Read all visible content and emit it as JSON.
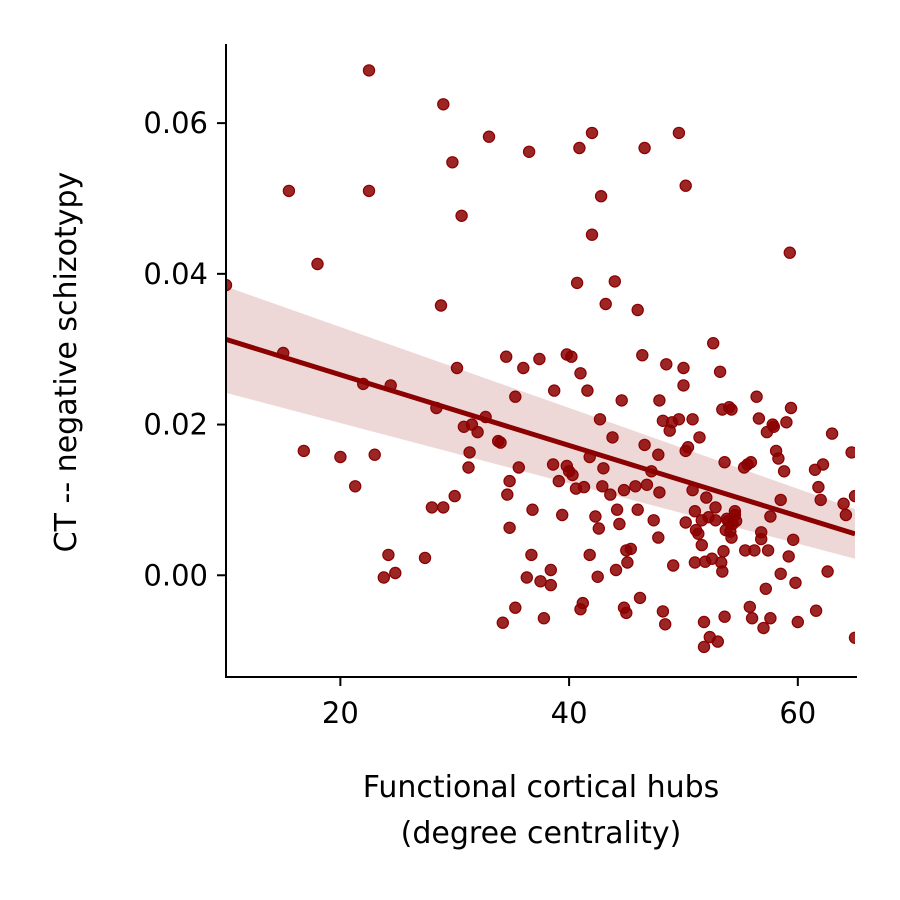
{
  "chart_data": {
    "type": "scatter",
    "title": "",
    "xlabel_lines": [
      "Functional cortical hubs",
      "(degree centrality)"
    ],
    "ylabel": "CT -- negative schizotypy",
    "xlim": [
      10,
      65
    ],
    "ylim": [
      -0.0135,
      0.0705
    ],
    "xticks": [
      20,
      40,
      60
    ],
    "xtick_labels": [
      "20",
      "40",
      "60"
    ],
    "yticks": [
      0.0,
      0.02,
      0.04,
      0.06
    ],
    "ytick_labels": [
      "0.00",
      "0.02",
      "0.04",
      "0.06"
    ],
    "grid": false,
    "point_color": "#8b0000",
    "line_color": "#8b0000",
    "band_color": "#e7c9c9",
    "regression": {
      "x": [
        10,
        65
      ],
      "y": [
        0.0313,
        0.0055
      ],
      "ci_lower": [
        0.0242,
        0.0022
      ],
      "ci_upper": [
        0.0383,
        0.0088
      ]
    },
    "points": [
      [
        10.0,
        0.0385
      ],
      [
        15.0,
        0.0295
      ],
      [
        15.5,
        0.051
      ],
      [
        16.8,
        0.0165
      ],
      [
        18.0,
        0.0413
      ],
      [
        20.0,
        0.0157
      ],
      [
        21.3,
        0.0118
      ],
      [
        22.0,
        0.0254
      ],
      [
        22.5,
        0.067
      ],
      [
        22.5,
        0.051
      ],
      [
        23.0,
        0.016
      ],
      [
        23.8,
        -0.0003
      ],
      [
        24.2,
        0.0027
      ],
      [
        24.4,
        0.0252
      ],
      [
        24.8,
        0.0003
      ],
      [
        27.4,
        0.0023
      ],
      [
        28.0,
        0.009
      ],
      [
        28.4,
        0.0222
      ],
      [
        28.8,
        0.0358
      ],
      [
        29.0,
        0.0625
      ],
      [
        29.0,
        0.009
      ],
      [
        29.8,
        0.0548
      ],
      [
        30.0,
        0.0105
      ],
      [
        30.2,
        0.0275
      ],
      [
        30.6,
        0.0477
      ],
      [
        30.8,
        0.0197
      ],
      [
        31.2,
        0.0143
      ],
      [
        31.3,
        0.0163
      ],
      [
        31.5,
        0.02
      ],
      [
        32.0,
        0.019
      ],
      [
        32.7,
        0.021
      ],
      [
        33.0,
        0.0582
      ],
      [
        33.8,
        0.0178
      ],
      [
        34.0,
        0.0176
      ],
      [
        34.2,
        -0.0063
      ],
      [
        34.5,
        0.029
      ],
      [
        34.6,
        0.0107
      ],
      [
        34.8,
        0.0125
      ],
      [
        34.8,
        0.0063
      ],
      [
        35.3,
        0.0237
      ],
      [
        35.3,
        -0.0043
      ],
      [
        35.6,
        0.0143
      ],
      [
        36.0,
        0.0275
      ],
      [
        36.3,
        -0.0003
      ],
      [
        36.5,
        0.0562
      ],
      [
        36.7,
        0.0027
      ],
      [
        36.8,
        0.0087
      ],
      [
        37.4,
        0.0287
      ],
      [
        37.5,
        -0.0008
      ],
      [
        37.8,
        -0.0057
      ],
      [
        38.4,
        -0.0013
      ],
      [
        38.4,
        0.0007
      ],
      [
        38.6,
        0.0147
      ],
      [
        38.7,
        0.0245
      ],
      [
        39.1,
        0.0125
      ],
      [
        39.4,
        0.008
      ],
      [
        39.8,
        0.0293
      ],
      [
        39.8,
        0.0145
      ],
      [
        40.0,
        0.0138
      ],
      [
        40.2,
        0.029
      ],
      [
        40.3,
        0.0133
      ],
      [
        40.6,
        0.0115
      ],
      [
        40.7,
        0.0388
      ],
      [
        40.9,
        0.0567
      ],
      [
        41.0,
        0.0268
      ],
      [
        41.0,
        -0.0045
      ],
      [
        41.2,
        -0.0037
      ],
      [
        41.3,
        0.0117
      ],
      [
        41.6,
        0.0245
      ],
      [
        41.8,
        0.0027
      ],
      [
        41.8,
        0.0157
      ],
      [
        42.0,
        0.0587
      ],
      [
        42.0,
        0.0452
      ],
      [
        42.3,
        0.0078
      ],
      [
        42.5,
        -0.0002
      ],
      [
        42.6,
        0.0062
      ],
      [
        42.7,
        0.0207
      ],
      [
        42.8,
        0.0503
      ],
      [
        42.9,
        0.0118
      ],
      [
        43.0,
        0.0142
      ],
      [
        43.2,
        0.036
      ],
      [
        43.6,
        0.0107
      ],
      [
        43.8,
        0.0183
      ],
      [
        44.0,
        0.039
      ],
      [
        44.1,
        0.0007
      ],
      [
        44.2,
        0.0087
      ],
      [
        44.4,
        0.0068
      ],
      [
        44.6,
        0.0232
      ],
      [
        44.8,
        0.0113
      ],
      [
        44.8,
        -0.0043
      ],
      [
        45.0,
        0.0033
      ],
      [
        45.0,
        -0.005
      ],
      [
        45.1,
        0.0017
      ],
      [
        45.4,
        0.0035
      ],
      [
        45.8,
        0.0118
      ],
      [
        46.0,
        0.0087
      ],
      [
        46.0,
        0.0352
      ],
      [
        46.2,
        -0.003
      ],
      [
        46.4,
        0.0292
      ],
      [
        46.6,
        0.0567
      ],
      [
        46.6,
        0.0173
      ],
      [
        46.8,
        0.012
      ],
      [
        47.2,
        0.0138
      ],
      [
        47.4,
        0.0073
      ],
      [
        47.8,
        0.016
      ],
      [
        47.8,
        0.005
      ],
      [
        47.9,
        0.011
      ],
      [
        47.9,
        0.0232
      ],
      [
        48.2,
        0.0205
      ],
      [
        48.2,
        -0.0048
      ],
      [
        48.4,
        -0.0065
      ],
      [
        48.5,
        0.028
      ],
      [
        48.8,
        0.0192
      ],
      [
        49.0,
        0.0203
      ],
      [
        49.1,
        0.0013
      ],
      [
        49.6,
        0.0207
      ],
      [
        49.6,
        0.0587
      ],
      [
        50.0,
        0.0275
      ],
      [
        50.0,
        0.0252
      ],
      [
        50.2,
        0.0517
      ],
      [
        50.2,
        0.0165
      ],
      [
        50.2,
        0.007
      ],
      [
        50.4,
        0.017
      ],
      [
        50.8,
        0.0207
      ],
      [
        50.8,
        0.0113
      ],
      [
        51.0,
        0.0085
      ],
      [
        51.0,
        0.0017
      ],
      [
        51.1,
        0.006
      ],
      [
        51.3,
        0.0055
      ],
      [
        51.4,
        0.0183
      ],
      [
        51.6,
        0.0073
      ],
      [
        51.6,
        0.004
      ],
      [
        51.8,
        -0.0062
      ],
      [
        51.8,
        -0.0095
      ],
      [
        51.9,
        0.0018
      ],
      [
        52.0,
        0.0103
      ],
      [
        52.2,
        0.0077
      ],
      [
        52.3,
        -0.0082
      ],
      [
        52.5,
        0.0022
      ],
      [
        52.6,
        0.0308
      ],
      [
        52.8,
        0.0073
      ],
      [
        52.8,
        0.009
      ],
      [
        53.0,
        -0.0088
      ],
      [
        53.2,
        0.027
      ],
      [
        53.3,
        0.0017
      ],
      [
        53.4,
        0.022
      ],
      [
        53.4,
        0.0005
      ],
      [
        53.5,
        0.0032
      ],
      [
        53.6,
        0.015
      ],
      [
        53.6,
        -0.0055
      ],
      [
        53.7,
        0.006
      ],
      [
        53.8,
        0.0075
      ],
      [
        53.9,
        0.0072
      ],
      [
        54.0,
        0.0223
      ],
      [
        54.1,
        0.0058
      ],
      [
        54.2,
        0.005
      ],
      [
        54.2,
        0.022
      ],
      [
        54.3,
        0.0068
      ],
      [
        54.5,
        0.008
      ],
      [
        54.5,
        0.0085
      ],
      [
        54.6,
        0.0072
      ],
      [
        55.3,
        0.0143
      ],
      [
        55.4,
        0.0033
      ],
      [
        55.6,
        0.0147
      ],
      [
        55.8,
        -0.0042
      ],
      [
        55.9,
        0.015
      ],
      [
        56.0,
        -0.0057
      ],
      [
        56.2,
        0.0033
      ],
      [
        56.4,
        0.0237
      ],
      [
        56.6,
        0.0208
      ],
      [
        56.8,
        0.0057
      ],
      [
        56.8,
        0.0048
      ],
      [
        57.0,
        -0.007
      ],
      [
        57.2,
        -0.0018
      ],
      [
        57.3,
        0.019
      ],
      [
        57.4,
        0.0033
      ],
      [
        57.6,
        -0.0057
      ],
      [
        57.6,
        0.0078
      ],
      [
        57.8,
        0.02
      ],
      [
        57.9,
        0.0197
      ],
      [
        58.1,
        0.0165
      ],
      [
        58.3,
        0.0155
      ],
      [
        58.5,
        0.0002
      ],
      [
        58.5,
        0.01
      ],
      [
        58.8,
        0.0138
      ],
      [
        59.0,
        0.0203
      ],
      [
        59.2,
        0.0025
      ],
      [
        59.3,
        0.0428
      ],
      [
        59.4,
        0.0222
      ],
      [
        59.6,
        0.0047
      ],
      [
        59.8,
        -0.001
      ],
      [
        60.0,
        -0.0062
      ],
      [
        61.5,
        0.014
      ],
      [
        61.6,
        -0.0047
      ],
      [
        61.8,
        0.0117
      ],
      [
        62.0,
        0.01
      ],
      [
        62.2,
        0.0147
      ],
      [
        62.6,
        0.0005
      ],
      [
        63.0,
        0.0188
      ],
      [
        64.0,
        0.0095
      ],
      [
        64.2,
        0.008
      ],
      [
        64.7,
        0.0163
      ],
      [
        65.0,
        -0.0083
      ],
      [
        65.0,
        0.0105
      ]
    ]
  }
}
